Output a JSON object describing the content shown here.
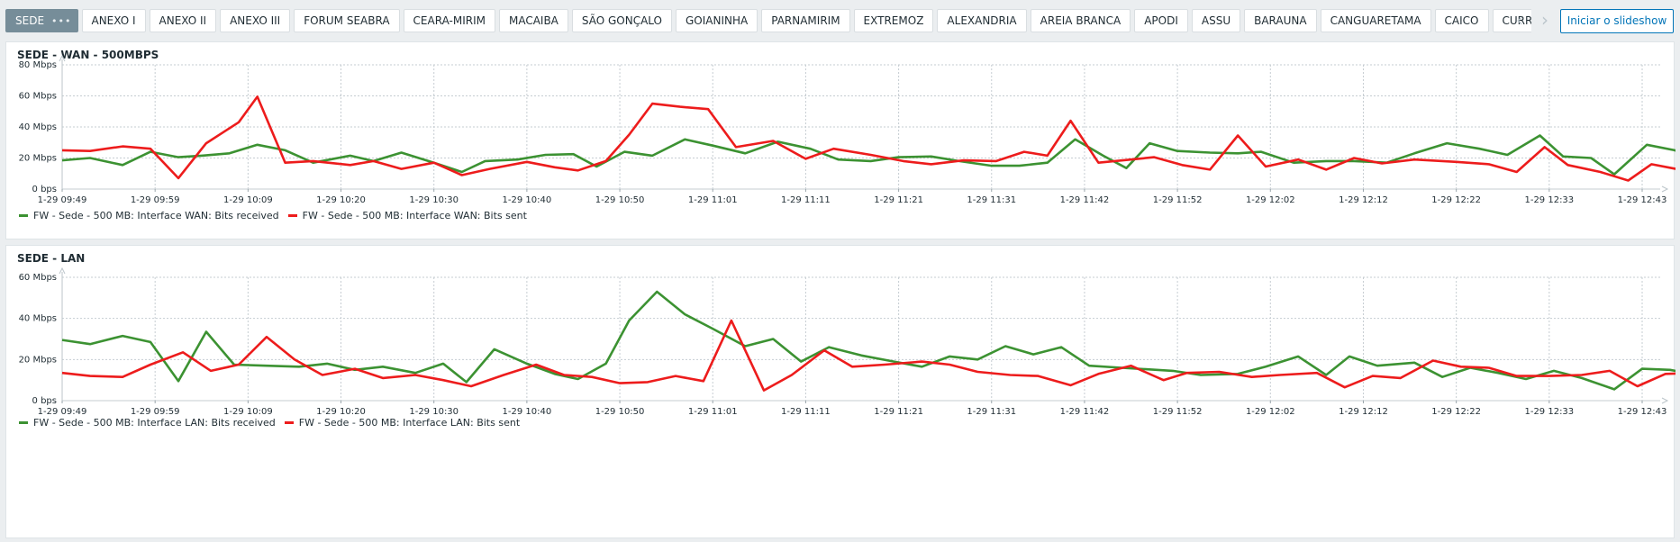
{
  "tabs": [
    {
      "label": "SEDE",
      "active": true
    },
    {
      "label": "ANEXO I"
    },
    {
      "label": "ANEXO II"
    },
    {
      "label": "ANEXO III"
    },
    {
      "label": "FORUM SEABRA"
    },
    {
      "label": "CEARA-MIRIM"
    },
    {
      "label": "MACAIBA"
    },
    {
      "label": "SÃO GONÇALO"
    },
    {
      "label": "GOIANINHA"
    },
    {
      "label": "PARNAMIRIM"
    },
    {
      "label": "EXTREMOZ"
    },
    {
      "label": "ALEXANDRIA"
    },
    {
      "label": "AREIA BRANCA"
    },
    {
      "label": "APODI"
    },
    {
      "label": "ASSU"
    },
    {
      "label": "BARAUNA"
    },
    {
      "label": "CANGUARETAMA"
    },
    {
      "label": "CAICO"
    },
    {
      "label": "CURRAIS NO"
    }
  ],
  "tab_menu_icon": "ellipsis-icon",
  "slideshow_button": "Iniciar o slideshow",
  "colors": {
    "received": "#3c9232",
    "sent": "#ed1c1c",
    "grid": "#c6cdd2",
    "button": "#0275b8"
  },
  "panels": [
    {
      "title": "SEDE - WAN - 500MBPS",
      "legend": [
        {
          "label": "FW - Sede - 500 MB: Interface WAN: Bits received",
          "color": "#3c9232"
        },
        {
          "label": "FW - Sede - 500 MB: Interface WAN: Bits sent",
          "color": "#ed1c1c"
        }
      ]
    },
    {
      "title": "SEDE - LAN",
      "legend": [
        {
          "label": "FW - Sede - 500 MB: Interface LAN: Bits received",
          "color": "#3c9232"
        },
        {
          "label": "FW - Sede - 500 MB: Interface LAN: Bits sent",
          "color": "#ed1c1c"
        }
      ]
    }
  ],
  "chart_data": [
    {
      "type": "line",
      "title": "SEDE - WAN - 500MBPS",
      "ylim": [
        0,
        80
      ],
      "yticks": [
        "0 bps",
        "20 Mbps",
        "40 Mbps",
        "60 Mbps",
        "80 Mbps"
      ],
      "xticks": [
        "1-29 09:49",
        "1-29 09:59",
        "1-29 10:09",
        "1-29 10:20",
        "1-29 10:30",
        "1-29 10:40",
        "1-29 10:50",
        "1-29 11:01",
        "1-29 11:11",
        "1-29 11:21",
        "1-29 11:31",
        "1-29 11:42",
        "1-29 11:52",
        "1-29 12:02",
        "1-29 12:12",
        "1-29 12:22",
        "1-29 12:33",
        "1-29 12:43"
      ],
      "series": [
        {
          "name": "FW - Sede - 500 MB: Interface WAN: Bits received",
          "color": "#3c9232",
          "points": [
            [
              0,
              18.5
            ],
            [
              0.3,
              20
            ],
            [
              0.65,
              15.5
            ],
            [
              0.95,
              24
            ],
            [
              1.25,
              20.5
            ],
            [
              1.5,
              21.5
            ],
            [
              1.8,
              23
            ],
            [
              2.1,
              28.5
            ],
            [
              2.4,
              25
            ],
            [
              2.7,
              17
            ],
            [
              3.1,
              21.5
            ],
            [
              3.35,
              18
            ],
            [
              3.65,
              23.5
            ],
            [
              4.0,
              17
            ],
            [
              4.3,
              11
            ],
            [
              4.55,
              18
            ],
            [
              4.9,
              19
            ],
            [
              5.2,
              22
            ],
            [
              5.5,
              22.5
            ],
            [
              5.75,
              14.5
            ],
            [
              6.05,
              24
            ],
            [
              6.35,
              21.5
            ],
            [
              6.7,
              32
            ],
            [
              7.0,
              28
            ],
            [
              7.35,
              23
            ],
            [
              7.7,
              30.5
            ],
            [
              8.05,
              26
            ],
            [
              8.35,
              19
            ],
            [
              8.7,
              18
            ],
            [
              9.0,
              20.5
            ],
            [
              9.35,
              21
            ],
            [
              9.65,
              18
            ],
            [
              10.0,
              15
            ],
            [
              10.3,
              15
            ],
            [
              10.6,
              17
            ],
            [
              10.9,
              32
            ],
            [
              11.2,
              21.5
            ],
            [
              11.45,
              13.5
            ],
            [
              11.7,
              29.5
            ],
            [
              12.0,
              24.5
            ],
            [
              12.35,
              23.5
            ],
            [
              12.65,
              23
            ],
            [
              12.9,
              24
            ],
            [
              13.25,
              17
            ],
            [
              13.6,
              18
            ],
            [
              13.9,
              18
            ],
            [
              14.25,
              17
            ],
            [
              14.55,
              23
            ],
            [
              14.9,
              29.5
            ],
            [
              15.25,
              26
            ],
            [
              15.55,
              22
            ],
            [
              15.9,
              34.5
            ],
            [
              16.15,
              21
            ],
            [
              16.45,
              20
            ],
            [
              16.7,
              9.5
            ],
            [
              17.05,
              28.5
            ],
            [
              17.35,
              25
            ],
            [
              17.7,
              17.5
            ],
            [
              18.0,
              17
            ],
            [
              18.35,
              16
            ]
          ]
        },
        {
          "name": "FW - Sede - 500 MB: Interface WAN: Bits sent",
          "color": "#ed1c1c",
          "points": [
            [
              0,
              25
            ],
            [
              0.3,
              24.5
            ],
            [
              0.65,
              27.5
            ],
            [
              0.95,
              26
            ],
            [
              1.25,
              7
            ],
            [
              1.55,
              29.5
            ],
            [
              1.9,
              43
            ],
            [
              2.1,
              59.5
            ],
            [
              2.4,
              17
            ],
            [
              2.7,
              18
            ],
            [
              3.1,
              15.5
            ],
            [
              3.35,
              18
            ],
            [
              3.65,
              13
            ],
            [
              4.0,
              17
            ],
            [
              4.3,
              9
            ],
            [
              4.6,
              13
            ],
            [
              5.0,
              17.5
            ],
            [
              5.3,
              14
            ],
            [
              5.55,
              12
            ],
            [
              5.85,
              18
            ],
            [
              6.1,
              35
            ],
            [
              6.35,
              55
            ],
            [
              6.65,
              53
            ],
            [
              6.95,
              51.5
            ],
            [
              7.25,
              27
            ],
            [
              7.65,
              31
            ],
            [
              8.0,
              19.5
            ],
            [
              8.3,
              26
            ],
            [
              8.7,
              22
            ],
            [
              9.05,
              18
            ],
            [
              9.35,
              16
            ],
            [
              9.7,
              18.5
            ],
            [
              10.05,
              18
            ],
            [
              10.35,
              24
            ],
            [
              10.6,
              21.5
            ],
            [
              10.85,
              44
            ],
            [
              11.15,
              17
            ],
            [
              11.5,
              19
            ],
            [
              11.75,
              20.5
            ],
            [
              12.05,
              15.5
            ],
            [
              12.35,
              12.5
            ],
            [
              12.65,
              34.5
            ],
            [
              12.95,
              14.5
            ],
            [
              13.3,
              19
            ],
            [
              13.6,
              12.5
            ],
            [
              13.9,
              20
            ],
            [
              14.2,
              16.5
            ],
            [
              14.55,
              19
            ],
            [
              15.0,
              17.5
            ],
            [
              15.35,
              16
            ],
            [
              15.65,
              11
            ],
            [
              15.95,
              27
            ],
            [
              16.2,
              15.5
            ],
            [
              16.55,
              11
            ],
            [
              16.85,
              5.5
            ],
            [
              17.1,
              16
            ],
            [
              17.45,
              12
            ],
            [
              17.8,
              12.5
            ],
            [
              18.1,
              12.5
            ],
            [
              18.35,
              14
            ]
          ]
        }
      ]
    },
    {
      "type": "line",
      "title": "SEDE - LAN",
      "ylim": [
        0,
        60
      ],
      "yticks": [
        "0 bps",
        "20 Mbps",
        "40 Mbps",
        "60 Mbps"
      ],
      "xticks": [
        "1-29 09:49",
        "1-29 09:59",
        "1-29 10:09",
        "1-29 10:20",
        "1-29 10:30",
        "1-29 10:40",
        "1-29 10:50",
        "1-29 11:01",
        "1-29 11:11",
        "1-29 11:21",
        "1-29 11:31",
        "1-29 11:42",
        "1-29 11:52",
        "1-29 12:02",
        "1-29 12:12",
        "1-29 12:22",
        "1-29 12:33",
        "1-29 12:43"
      ],
      "series": [
        {
          "name": "FW - Sede - 500 MB: Interface LAN: Bits received",
          "color": "#3c9232",
          "points": [
            [
              0,
              29.5
            ],
            [
              0.3,
              27.5
            ],
            [
              0.65,
              31.5
            ],
            [
              0.95,
              28.5
            ],
            [
              1.25,
              9.5
            ],
            [
              1.55,
              33.5
            ],
            [
              1.85,
              17.5
            ],
            [
              2.2,
              17
            ],
            [
              2.55,
              16.5
            ],
            [
              2.85,
              18
            ],
            [
              3.15,
              15
            ],
            [
              3.45,
              16.5
            ],
            [
              3.8,
              13.5
            ],
            [
              4.1,
              18
            ],
            [
              4.35,
              9
            ],
            [
              4.65,
              25
            ],
            [
              5.0,
              18
            ],
            [
              5.3,
              13
            ],
            [
              5.55,
              10.5
            ],
            [
              5.85,
              18
            ],
            [
              6.1,
              39
            ],
            [
              6.4,
              53
            ],
            [
              6.7,
              42
            ],
            [
              7.0,
              35
            ],
            [
              7.35,
              26.5
            ],
            [
              7.65,
              30
            ],
            [
              7.95,
              19
            ],
            [
              8.25,
              26
            ],
            [
              8.6,
              22
            ],
            [
              8.95,
              19
            ],
            [
              9.25,
              16.5
            ],
            [
              9.55,
              21.5
            ],
            [
              9.85,
              20
            ],
            [
              10.15,
              26.5
            ],
            [
              10.45,
              22.5
            ],
            [
              10.75,
              26
            ],
            [
              11.05,
              17
            ],
            [
              11.4,
              16
            ],
            [
              11.95,
              14.5
            ],
            [
              12.25,
              12.5
            ],
            [
              12.65,
              13
            ],
            [
              12.95,
              16.5
            ],
            [
              13.3,
              21.5
            ],
            [
              13.6,
              12.5
            ],
            [
              13.85,
              21.5
            ],
            [
              14.15,
              17
            ],
            [
              14.55,
              18.5
            ],
            [
              14.85,
              11.5
            ],
            [
              15.15,
              16
            ],
            [
              15.45,
              13.5
            ],
            [
              15.75,
              10.5
            ],
            [
              16.05,
              14.5
            ],
            [
              16.35,
              11
            ],
            [
              16.7,
              5.5
            ],
            [
              17.0,
              15.5
            ],
            [
              17.3,
              15
            ],
            [
              17.6,
              12.5
            ],
            [
              17.95,
              13
            ],
            [
              18.35,
              14
            ]
          ]
        },
        {
          "name": "FW - Sede - 500 MB: Interface LAN: Bits sent",
          "color": "#ed1c1c",
          "points": [
            [
              0,
              13.5
            ],
            [
              0.3,
              12
            ],
            [
              0.65,
              11.5
            ],
            [
              0.95,
              17.5
            ],
            [
              1.3,
              23.5
            ],
            [
              1.6,
              14.5
            ],
            [
              1.9,
              17.5
            ],
            [
              2.2,
              31
            ],
            [
              2.5,
              20
            ],
            [
              2.8,
              12.5
            ],
            [
              3.15,
              15.5
            ],
            [
              3.45,
              11
            ],
            [
              3.8,
              12.5
            ],
            [
              4.1,
              10
            ],
            [
              4.4,
              7
            ],
            [
              4.75,
              12.5
            ],
            [
              5.1,
              17.5
            ],
            [
              5.4,
              12.5
            ],
            [
              5.7,
              11.5
            ],
            [
              6.0,
              8.5
            ],
            [
              6.3,
              9
            ],
            [
              6.6,
              12
            ],
            [
              6.9,
              9.5
            ],
            [
              7.2,
              39
            ],
            [
              7.55,
              5
            ],
            [
              7.85,
              12.5
            ],
            [
              8.2,
              24.5
            ],
            [
              8.5,
              16.5
            ],
            [
              8.85,
              17.5
            ],
            [
              9.25,
              19
            ],
            [
              9.55,
              17.5
            ],
            [
              9.85,
              14
            ],
            [
              10.2,
              12.5
            ],
            [
              10.5,
              12
            ],
            [
              10.85,
              7.5
            ],
            [
              11.15,
              13
            ],
            [
              11.5,
              17
            ],
            [
              11.85,
              10
            ],
            [
              12.1,
              13.5
            ],
            [
              12.45,
              14
            ],
            [
              12.8,
              11.5
            ],
            [
              13.1,
              12.5
            ],
            [
              13.5,
              13.5
            ],
            [
              13.8,
              6.5
            ],
            [
              14.1,
              12
            ],
            [
              14.4,
              11
            ],
            [
              14.75,
              19.5
            ],
            [
              15.05,
              16.5
            ],
            [
              15.35,
              16
            ],
            [
              15.65,
              12
            ],
            [
              16.0,
              12
            ],
            [
              16.35,
              12.5
            ],
            [
              16.65,
              14.5
            ],
            [
              16.95,
              7
            ],
            [
              17.25,
              13
            ],
            [
              17.6,
              13.5
            ],
            [
              17.9,
              13.5
            ],
            [
              18.2,
              18
            ],
            [
              18.45,
              10.5
            ]
          ]
        }
      ]
    }
  ]
}
